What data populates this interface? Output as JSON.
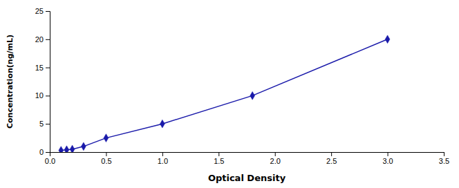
{
  "chart_data": {
    "type": "line",
    "xlabel": "Optical Density",
    "ylabel": "Concentration(ng/mL)",
    "x": [
      0.1,
      0.15,
      0.2,
      0.3,
      0.5,
      1.0,
      1.8,
      3.0
    ],
    "values": [
      0.3,
      0.4,
      0.5,
      1.0,
      2.5,
      5.0,
      10.0,
      20.0
    ],
    "color": "#1a1aaa",
    "marker": "diamond",
    "line_style": "solid",
    "xlim": [
      0,
      3.5
    ],
    "ylim": [
      0,
      25
    ],
    "xticks": [
      {
        "value": 0,
        "label": "0.0"
      },
      0.5,
      {
        "value": 1.0,
        "label": "1.0"
      },
      1.5,
      {
        "value": 2.0,
        "label": "2.0"
      },
      2.5,
      {
        "value": 3.0,
        "label": "3.0"
      },
      3.5
    ],
    "yticks": [
      0,
      5,
      10,
      15,
      20,
      25
    ],
    "grid": false
  }
}
